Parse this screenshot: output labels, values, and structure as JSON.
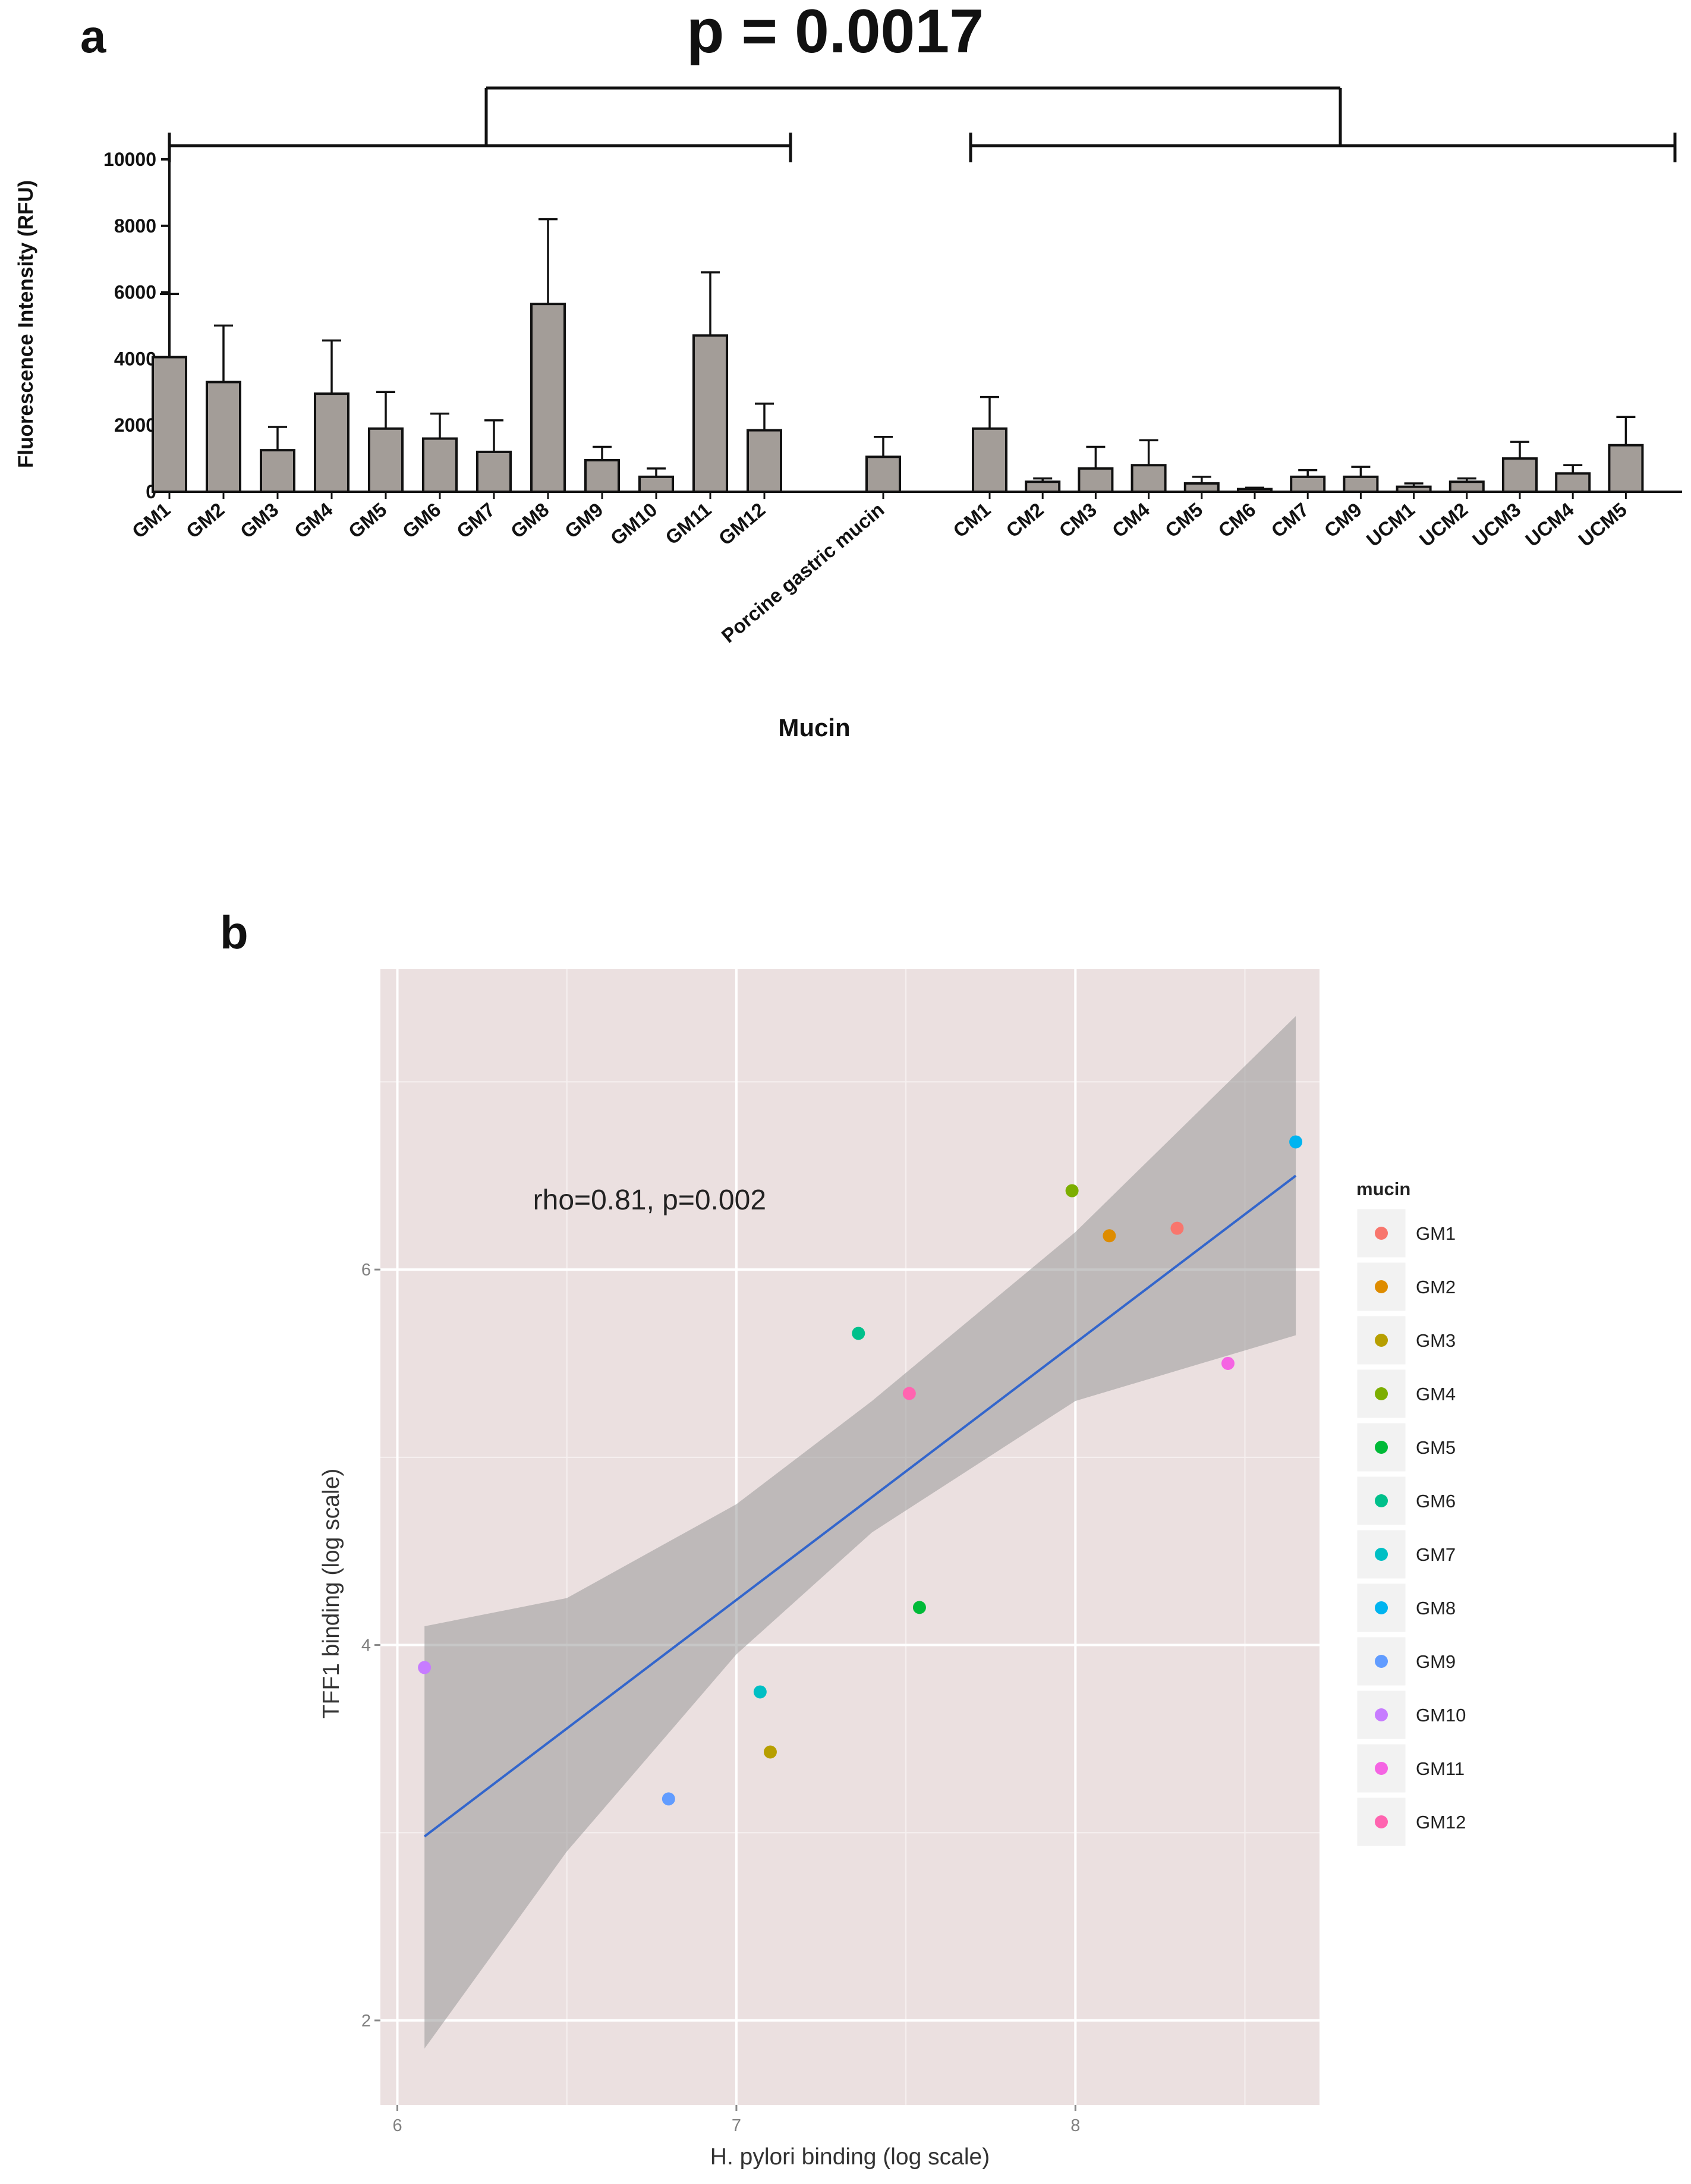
{
  "panel_a": {
    "letter": "a",
    "significance": "p = 0.0017"
  },
  "panel_b": {
    "letter": "b"
  },
  "chart_data": [
    {
      "type": "bar",
      "ylabel": "Fluorescence Intensity (RFU)",
      "xlabel": "Mucin",
      "ylim": [
        0,
        10000
      ],
      "yticks": [
        "0",
        "2000",
        "4000",
        "6000",
        "8000",
        "10000"
      ],
      "categories": [
        "GM1",
        "GM2",
        "GM3",
        "GM4",
        "GM5",
        "GM6",
        "GM7",
        "GM8",
        "GM9",
        "GM10",
        "GM11",
        "GM12",
        "Porcine gastric mucin",
        "CM1",
        "CM2",
        "CM3",
        "CM4",
        "CM5",
        "CM6",
        "CM7",
        "CM9",
        "UCM1",
        "UCM2",
        "UCM3",
        "UCM4",
        "UCM5"
      ],
      "values": [
        4050,
        3300,
        1250,
        2950,
        1900,
        1600,
        1200,
        5650,
        950,
        450,
        4700,
        1850,
        1050,
        1900,
        300,
        700,
        800,
        250,
        80,
        450,
        450,
        150,
        300,
        1000,
        550,
        1400
      ],
      "error_upper": [
        5950,
        5000,
        1950,
        4550,
        3000,
        2350,
        2150,
        8200,
        1350,
        700,
        6600,
        2650,
        1650,
        2850,
        400,
        1350,
        1550,
        450,
        120,
        650,
        750,
        250,
        400,
        1500,
        800,
        2250
      ],
      "bar_color": "#a39d98",
      "groups": [
        {
          "categories": [
            "GM1",
            "GM12"
          ]
        },
        {
          "categories": [
            "CM1",
            "UCM5"
          ]
        }
      ],
      "comparison_label": "p = 0.0017"
    },
    {
      "type": "scatter",
      "xlabel": "H. pylori binding (log scale)",
      "ylabel": "TFF1 binding (log scale)",
      "xlim": [
        5.95,
        8.72
      ],
      "ylim": [
        1.55,
        7.6
      ],
      "xticks": [
        "6",
        "7",
        "8"
      ],
      "yticks": [
        "2",
        "4",
        "6"
      ],
      "background": "#ebe0e0",
      "grid": true,
      "annotation": "rho=0.81, p=0.002",
      "legend_title": "mucin",
      "legend_position": "right",
      "series": [
        {
          "name": "GM1",
          "color": "#f8766d",
          "x": 8.3,
          "y": 6.22
        },
        {
          "name": "GM2",
          "color": "#de8c00",
          "x": 8.1,
          "y": 6.18
        },
        {
          "name": "GM3",
          "color": "#b79f00",
          "x": 7.1,
          "y": 3.43
        },
        {
          "name": "GM4",
          "color": "#7cae00",
          "x": 7.99,
          "y": 6.42
        },
        {
          "name": "GM5",
          "color": "#00ba38",
          "x": 7.54,
          "y": 4.2
        },
        {
          "name": "GM6",
          "color": "#00c08b",
          "x": 7.36,
          "y": 5.66
        },
        {
          "name": "GM7",
          "color": "#00bfc4",
          "x": 7.07,
          "y": 3.75
        },
        {
          "name": "GM8",
          "color": "#00b4f0",
          "x": 8.65,
          "y": 6.68
        },
        {
          "name": "GM9",
          "color": "#619cff",
          "x": 6.8,
          "y": 3.18
        },
        {
          "name": "GM10",
          "color": "#c77cff",
          "x": 6.08,
          "y": 3.88
        },
        {
          "name": "GM11",
          "color": "#f564e3",
          "x": 8.45,
          "y": 5.5
        },
        {
          "name": "GM12",
          "color": "#ff64b0",
          "x": 7.51,
          "y": 5.34
        }
      ],
      "fit_line": {
        "color": "#3366cc",
        "x": [
          6.08,
          8.65
        ],
        "y": [
          2.98,
          6.5
        ]
      },
      "confidence_band": {
        "color": "#999999",
        "x": [
          6.08,
          6.5,
          7.0,
          7.4,
          8.0,
          8.65
        ],
        "lower": [
          1.85,
          2.9,
          3.95,
          4.6,
          5.3,
          5.65
        ],
        "upper": [
          4.1,
          4.25,
          4.75,
          5.3,
          6.2,
          7.35
        ]
      }
    }
  ]
}
